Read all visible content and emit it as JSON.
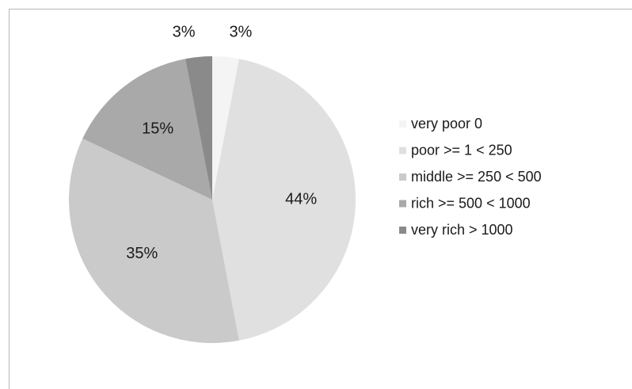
{
  "chart_data": {
    "type": "pie",
    "title": "",
    "categories": [
      "very poor 0",
      "poor >= 1 < 250",
      "middle >= 250 < 500",
      "rich >= 500 < 1000",
      "very rich > 1000"
    ],
    "values": [
      3,
      44,
      35,
      15,
      3
    ],
    "value_labels": [
      "3%",
      "44%",
      "35%",
      "15%",
      "3%"
    ],
    "colors": [
      "#f4f4f4",
      "#e0e0e0",
      "#cacaca",
      "#a9a9a9",
      "#8a8a8a"
    ],
    "legend_position": "right",
    "start_angle": "12 o'clock",
    "direction": "clockwise"
  }
}
